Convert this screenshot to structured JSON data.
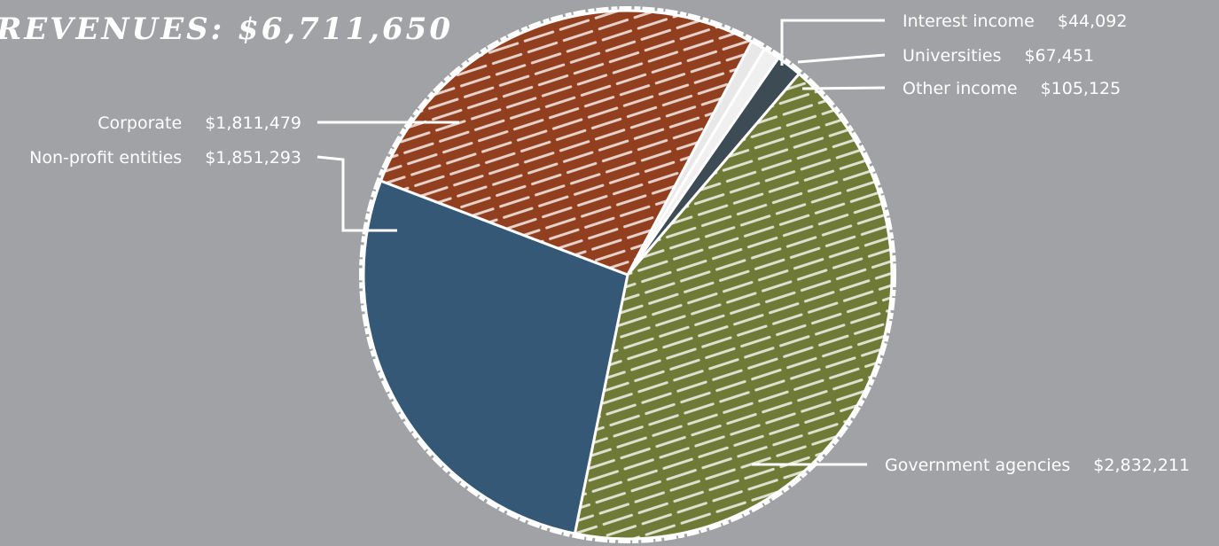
{
  "chart_data": {
    "type": "pie",
    "title": "REVENUES: $6,711,650",
    "slices": [
      {
        "label": "Interest income",
        "value_label": "$44,092",
        "value": 44092,
        "color": "#e8e8e8"
      },
      {
        "label": "Universities",
        "value_label": "$67,451",
        "value": 67451,
        "color": "#f0f0f0"
      },
      {
        "label": "Other income",
        "value_label": "$105,125",
        "value": 105125,
        "color": "#3d4b55"
      },
      {
        "label": "Government agencies",
        "value_label": "$2,832,211",
        "value": 2832211,
        "color": "#707a37"
      },
      {
        "label": "Non-profit entities",
        "value_label": "$1,851,293",
        "value": 1851293,
        "color": "#355876"
      },
      {
        "label": "Corporate",
        "value_label": "$1,811,479",
        "value": 1811479,
        "color": "#923f20"
      }
    ]
  },
  "colors": {
    "background": "#a1a2a5",
    "text": "#ffffff"
  }
}
